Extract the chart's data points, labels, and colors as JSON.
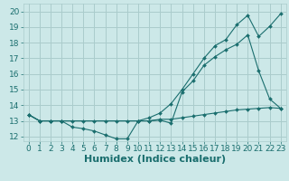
{
  "xlabel": "Humidex (Indice chaleur)",
  "bg_color": "#cce8e8",
  "grid_color": "#aacccc",
  "line_color": "#1a6e6e",
  "xlim": [
    -0.5,
    23.5
  ],
  "ylim": [
    11.7,
    20.5
  ],
  "xticks": [
    0,
    1,
    2,
    3,
    4,
    5,
    6,
    7,
    8,
    9,
    10,
    11,
    12,
    13,
    14,
    15,
    16,
    17,
    18,
    19,
    20,
    21,
    22,
    23
  ],
  "yticks": [
    12,
    13,
    14,
    15,
    16,
    17,
    18,
    19,
    20
  ],
  "line1_x": [
    0,
    1,
    2,
    3,
    4,
    5,
    6,
    7,
    8,
    9,
    10,
    11,
    12,
    13,
    14,
    15,
    16,
    17,
    18,
    19,
    20,
    21,
    22,
    23
  ],
  "line1_y": [
    13.4,
    13.0,
    13.0,
    13.0,
    13.0,
    13.0,
    13.0,
    13.0,
    13.0,
    13.0,
    13.0,
    13.0,
    13.1,
    13.1,
    13.2,
    13.3,
    13.4,
    13.5,
    13.6,
    13.7,
    13.75,
    13.8,
    13.85,
    13.8
  ],
  "line2_x": [
    0,
    1,
    2,
    3,
    4,
    5,
    6,
    7,
    8,
    9,
    10,
    11,
    12,
    13,
    14,
    15,
    16,
    17,
    18,
    19,
    20,
    21,
    22,
    23
  ],
  "line2_y": [
    13.4,
    13.0,
    13.0,
    13.0,
    12.6,
    12.5,
    12.35,
    12.1,
    11.85,
    11.85,
    13.0,
    13.0,
    13.05,
    12.85,
    14.85,
    15.55,
    16.55,
    17.1,
    17.55,
    17.9,
    18.5,
    16.2,
    14.4,
    13.8
  ],
  "line3_x": [
    0,
    1,
    2,
    3,
    10,
    11,
    12,
    13,
    14,
    15,
    16,
    17,
    18,
    19,
    20,
    21,
    22,
    23
  ],
  "line3_y": [
    13.4,
    13.0,
    13.0,
    13.0,
    13.0,
    13.2,
    13.5,
    14.1,
    15.0,
    16.0,
    17.0,
    17.8,
    18.2,
    19.15,
    19.75,
    18.4,
    19.05,
    19.85
  ],
  "xlabel_fontsize": 8,
  "tick_fontsize": 6.5
}
